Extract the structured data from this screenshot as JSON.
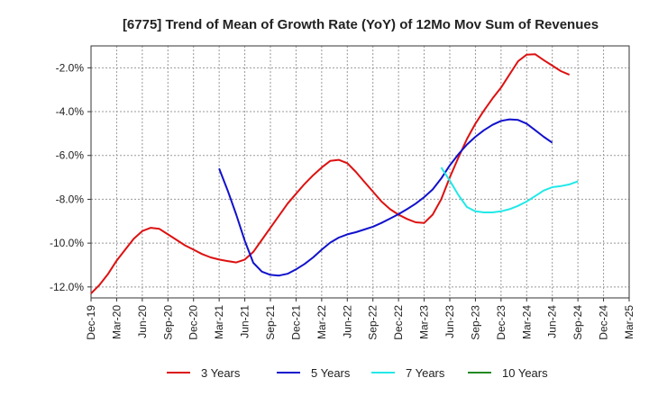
{
  "chart_data": {
    "type": "line",
    "title": "[6775]  Trend of Mean of Growth Rate (YoY) of 12Mo Mov Sum of Revenues",
    "xlabel": "",
    "ylabel": "",
    "ylim": [
      -12.5,
      -1.0
    ],
    "yticks": [
      -2.0,
      -4.0,
      -6.0,
      -8.0,
      -10.0,
      -12.0
    ],
    "ytick_labels": [
      "-2.0%",
      "-4.0%",
      "-6.0%",
      "-8.0%",
      "-10.0%",
      "-12.0%"
    ],
    "xticks": [
      "Dec-19",
      "Mar-20",
      "Jun-20",
      "Sep-20",
      "Dec-20",
      "Mar-21",
      "Jun-21",
      "Sep-21",
      "Dec-21",
      "Mar-22",
      "Jun-22",
      "Sep-22",
      "Dec-22",
      "Mar-23",
      "Jun-23",
      "Sep-23",
      "Dec-23",
      "Mar-24",
      "Jun-24",
      "Sep-24",
      "Dec-24",
      "Mar-25"
    ],
    "grid": true,
    "legend_position": "bottom",
    "series": [
      {
        "name": "3 Years",
        "color": "#dd1111",
        "start_index": 0,
        "values": [
          -12.3,
          -11.9,
          -11.4,
          -10.8,
          -10.3,
          -9.8,
          -9.45,
          -9.3,
          -9.35,
          -9.6,
          -9.85,
          -10.1,
          -10.3,
          -10.5,
          -10.65,
          -10.75,
          -10.82,
          -10.88,
          -10.75,
          -10.4,
          -9.85,
          -9.3,
          -8.75,
          -8.2,
          -7.75,
          -7.3,
          -6.9,
          -6.55,
          -6.25,
          -6.2,
          -6.35,
          -6.75,
          -7.2,
          -7.65,
          -8.1,
          -8.45,
          -8.7,
          -8.9,
          -9.05,
          -9.08,
          -8.7,
          -8.0,
          -7.0,
          -6.1,
          -5.25,
          -4.55,
          -3.95,
          -3.4,
          -2.9,
          -2.3,
          -1.7,
          -1.4,
          -1.38,
          -1.65,
          -1.9,
          -2.15,
          -2.32
        ]
      },
      {
        "name": "5 Years",
        "color": "#1111cc",
        "start_index": 15,
        "values": [
          -6.6,
          -7.6,
          -8.7,
          -9.9,
          -10.9,
          -11.3,
          -11.45,
          -11.48,
          -11.4,
          -11.2,
          -10.95,
          -10.65,
          -10.3,
          -9.98,
          -9.75,
          -9.6,
          -9.5,
          -9.38,
          -9.25,
          -9.08,
          -8.88,
          -8.68,
          -8.45,
          -8.2,
          -7.9,
          -7.55,
          -7.05,
          -6.45,
          -5.95,
          -5.5,
          -5.15,
          -4.85,
          -4.6,
          -4.42,
          -4.35,
          -4.38,
          -4.55,
          -4.85,
          -5.15,
          -5.42
        ]
      },
      {
        "name": "7 Years",
        "color": "#22e8e8",
        "start_index": 41,
        "values": [
          -6.55,
          -7.15,
          -7.8,
          -8.35,
          -8.55,
          -8.6,
          -8.6,
          -8.55,
          -8.45,
          -8.3,
          -8.1,
          -7.85,
          -7.6,
          -7.45,
          -7.4,
          -7.32,
          -7.18
        ]
      },
      {
        "name": "10 Years",
        "color": "#228822",
        "start_index": 0,
        "values": []
      }
    ]
  }
}
